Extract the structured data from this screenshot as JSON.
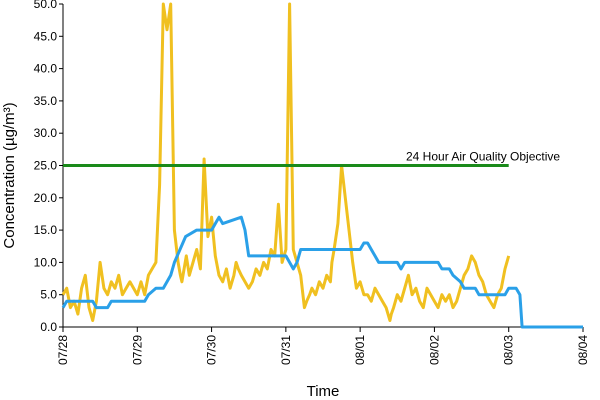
{
  "chart_data": {
    "type": "line",
    "title": "",
    "xlabel": "Time",
    "ylabel": "Concentration (µg/m³)",
    "ylim": [
      0,
      50
    ],
    "xlim": [
      "07/28",
      "08/04"
    ],
    "grid": false,
    "legend": "none",
    "x_ticks": [
      "07/28",
      "07/29",
      "07/30",
      "07/31",
      "08/01",
      "08/02",
      "08/03",
      "08/04"
    ],
    "y_ticks": [
      "0.0",
      "5.0",
      "10.0",
      "15.0",
      "20.0",
      "25.0",
      "30.0",
      "35.0",
      "40.0",
      "45.0",
      "50.0"
    ],
    "annotation": "24 Hour Air Quality Objective",
    "series": [
      {
        "color": "#f0c020",
        "style": "hourly",
        "x": [
          0.0,
          0.05,
          0.1,
          0.15,
          0.2,
          0.25,
          0.3,
          0.35,
          0.4,
          0.45,
          0.5,
          0.55,
          0.6,
          0.65,
          0.7,
          0.75,
          0.8,
          0.85,
          0.9,
          0.95,
          1.0,
          1.05,
          1.1,
          1.15,
          1.2,
          1.25,
          1.3,
          1.35,
          1.4,
          1.45,
          1.5,
          1.55,
          1.58,
          1.6,
          1.63,
          1.66,
          1.7,
          1.75,
          1.8,
          1.85,
          1.9,
          1.95,
          2.0,
          2.05,
          2.1,
          2.15,
          2.2,
          2.25,
          2.3,
          2.33,
          2.36,
          2.4,
          2.45,
          2.5,
          2.55,
          2.6,
          2.65,
          2.7,
          2.75,
          2.8,
          2.85,
          2.9,
          2.95,
          3.0,
          3.05,
          3.1,
          3.15,
          3.2,
          3.25,
          3.28,
          3.32,
          3.35,
          3.4,
          3.45,
          3.5,
          3.55,
          3.6,
          3.62,
          3.65,
          3.7,
          3.75,
          3.8,
          3.85,
          3.9,
          3.95,
          4.0,
          4.05,
          4.1,
          4.15,
          4.2,
          4.25,
          4.3,
          4.35,
          4.4,
          4.42,
          4.45,
          4.5,
          4.55,
          4.6,
          4.65,
          4.7,
          4.75,
          4.8,
          4.85,
          4.9,
          4.95,
          5.0,
          5.05,
          5.1,
          5.15,
          5.2,
          5.25,
          5.3,
          5.35,
          5.4,
          5.45,
          5.5,
          5.55,
          5.6,
          5.65,
          5.7,
          5.75,
          5.8,
          5.85,
          5.9,
          5.95,
          6.0
        ],
        "y": [
          5,
          6,
          3,
          4,
          2,
          6,
          8,
          3,
          1,
          4,
          10,
          6,
          5,
          7,
          6,
          8,
          5,
          6,
          7,
          6,
          5,
          7,
          5,
          8,
          9,
          10,
          22,
          50,
          46,
          50,
          15,
          10,
          8,
          7,
          9,
          11,
          8,
          10,
          12,
          9,
          26,
          14,
          17,
          11,
          8,
          7,
          9,
          6,
          8,
          10,
          9,
          8,
          7,
          6,
          7,
          9,
          8,
          10,
          9,
          12,
          11,
          19,
          10,
          12,
          50,
          12,
          10,
          8,
          3,
          4,
          5,
          6,
          5,
          7,
          6,
          8,
          7,
          10,
          12,
          16,
          25,
          20,
          15,
          10,
          6,
          7,
          5,
          5,
          4,
          6,
          5,
          4,
          3,
          1,
          2,
          3,
          5,
          4,
          6,
          8,
          5,
          6,
          4,
          3,
          6,
          5,
          4,
          3,
          5,
          4,
          5,
          3,
          4,
          6,
          8,
          9,
          11,
          10,
          8,
          7,
          5,
          4,
          3,
          5,
          6,
          9,
          11
        ]
      },
      {
        "color": "#2aa0e8",
        "style": "running average",
        "x": [
          0.0,
          0.05,
          0.4,
          0.45,
          0.6,
          0.65,
          1.1,
          1.15,
          1.25,
          1.3,
          1.35,
          1.4,
          1.45,
          1.5,
          1.65,
          1.8,
          2.0,
          2.05,
          2.1,
          2.15,
          2.4,
          2.45,
          2.5,
          2.55,
          2.6,
          3.0,
          3.05,
          3.1,
          3.15,
          3.2,
          3.25,
          4.0,
          4.05,
          4.1,
          4.15,
          4.2,
          4.25,
          4.5,
          4.55,
          4.6,
          4.7,
          4.75,
          4.8,
          5.05,
          5.1,
          5.2,
          5.25,
          5.35,
          5.4,
          5.55,
          5.6,
          5.75,
          5.8,
          5.85,
          5.95,
          6.0,
          6.1,
          6.15,
          6.18,
          6.22,
          7.0
        ],
        "y": [
          3,
          4,
          4,
          3,
          3,
          4,
          4,
          5,
          6,
          6,
          6,
          7,
          8,
          10,
          14,
          15,
          15,
          16,
          17,
          16,
          17,
          15,
          11,
          11,
          11,
          11,
          10,
          9,
          10,
          12,
          12,
          12,
          13,
          13,
          12,
          11,
          10,
          10,
          9,
          10,
          10,
          10,
          10,
          10,
          9,
          9,
          8,
          7,
          6,
          6,
          5,
          5,
          5,
          5,
          5,
          6,
          6,
          5,
          0,
          0,
          0
        ]
      }
    ],
    "objective": {
      "value": 25,
      "color": "#1a8a1a",
      "x_start": 0,
      "x_end": 6.0
    }
  }
}
